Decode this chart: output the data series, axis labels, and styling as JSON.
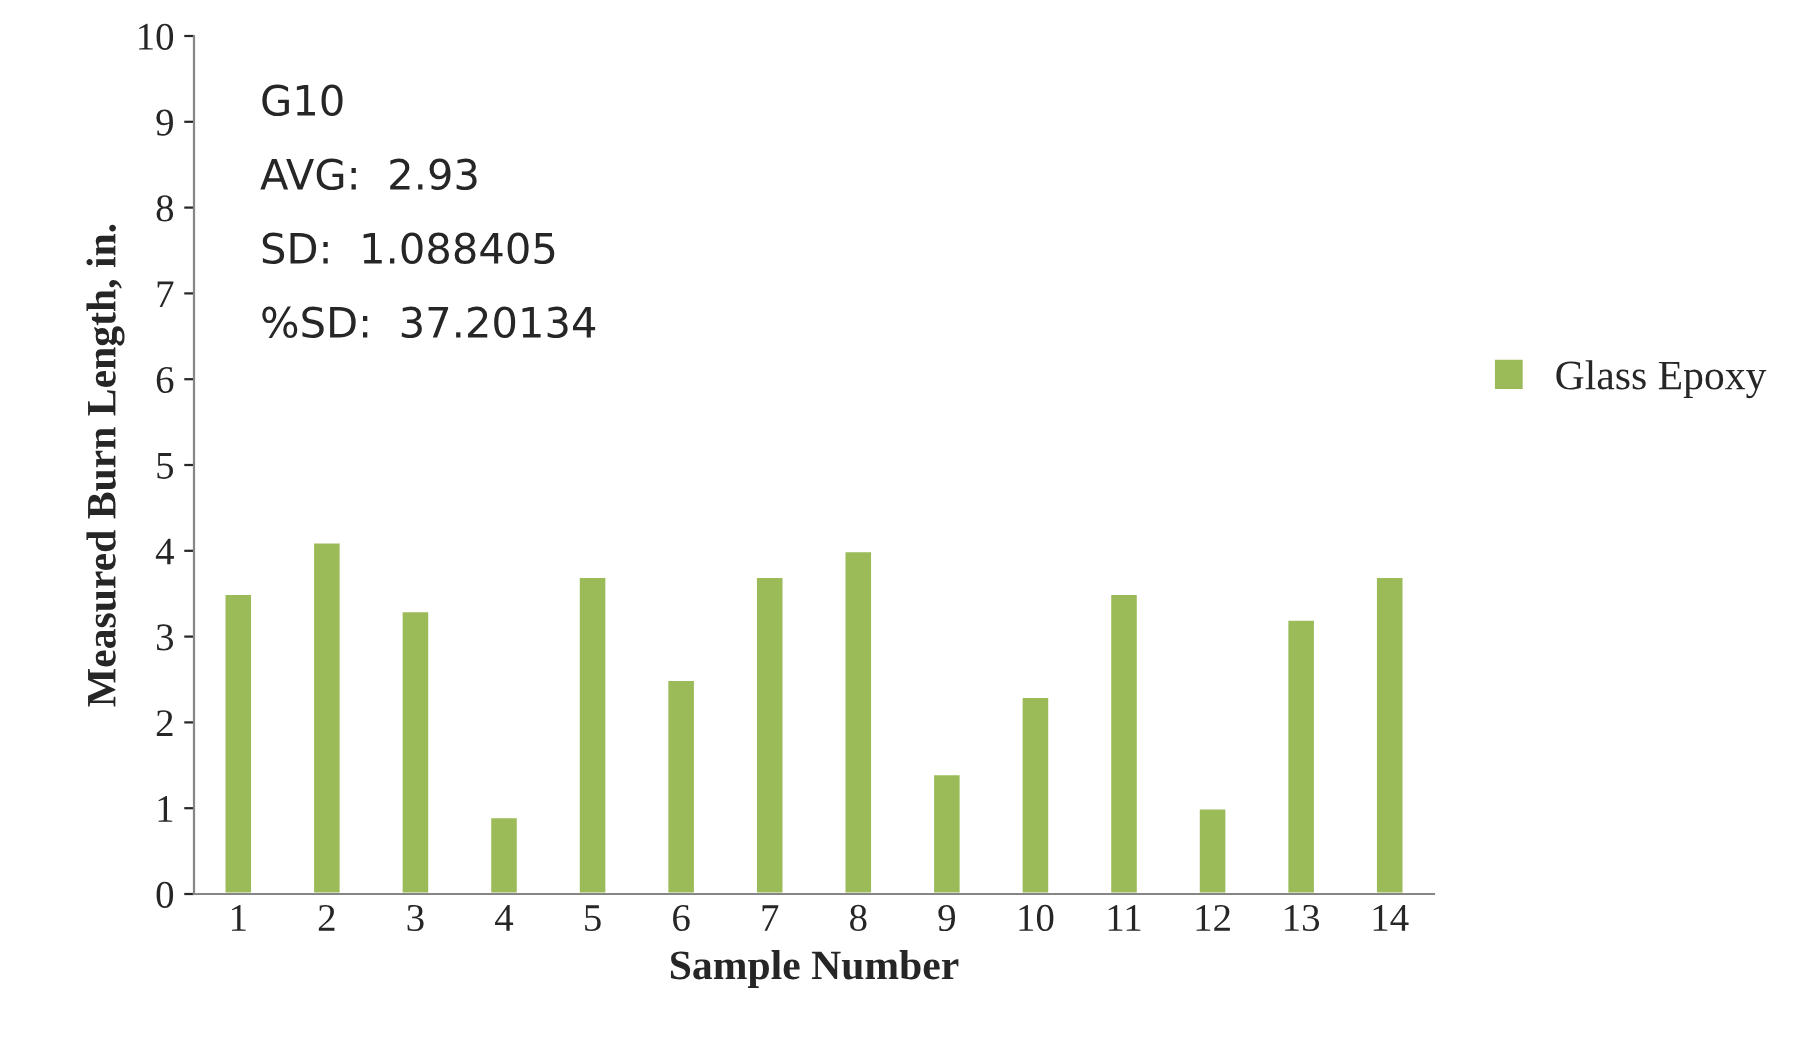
{
  "chart_data": {
    "type": "bar",
    "xlabel": "Sample Number",
    "ylabel": "Measured Burn Length, in.",
    "categories": [
      "1",
      "2",
      "3",
      "4",
      "5",
      "6",
      "7",
      "8",
      "9",
      "10",
      "11",
      "12",
      "13",
      "14"
    ],
    "series": [
      {
        "name": "Glass Epoxy",
        "color": "#9bbb59",
        "values": [
          3.5,
          4.1,
          3.3,
          0.9,
          3.7,
          2.5,
          3.7,
          4.0,
          1.4,
          2.3,
          3.5,
          1.0,
          3.2,
          3.7
        ]
      }
    ],
    "ylim": [
      0,
      10
    ],
    "yticks": [
      0,
      1,
      2,
      3,
      4,
      5,
      6,
      7,
      8,
      9,
      10
    ],
    "annotations": [
      "G10",
      "AVG:  2.93",
      "SD:  1.088405",
      "%SD:  37.20134"
    ],
    "grid": false,
    "legend": "right"
  }
}
